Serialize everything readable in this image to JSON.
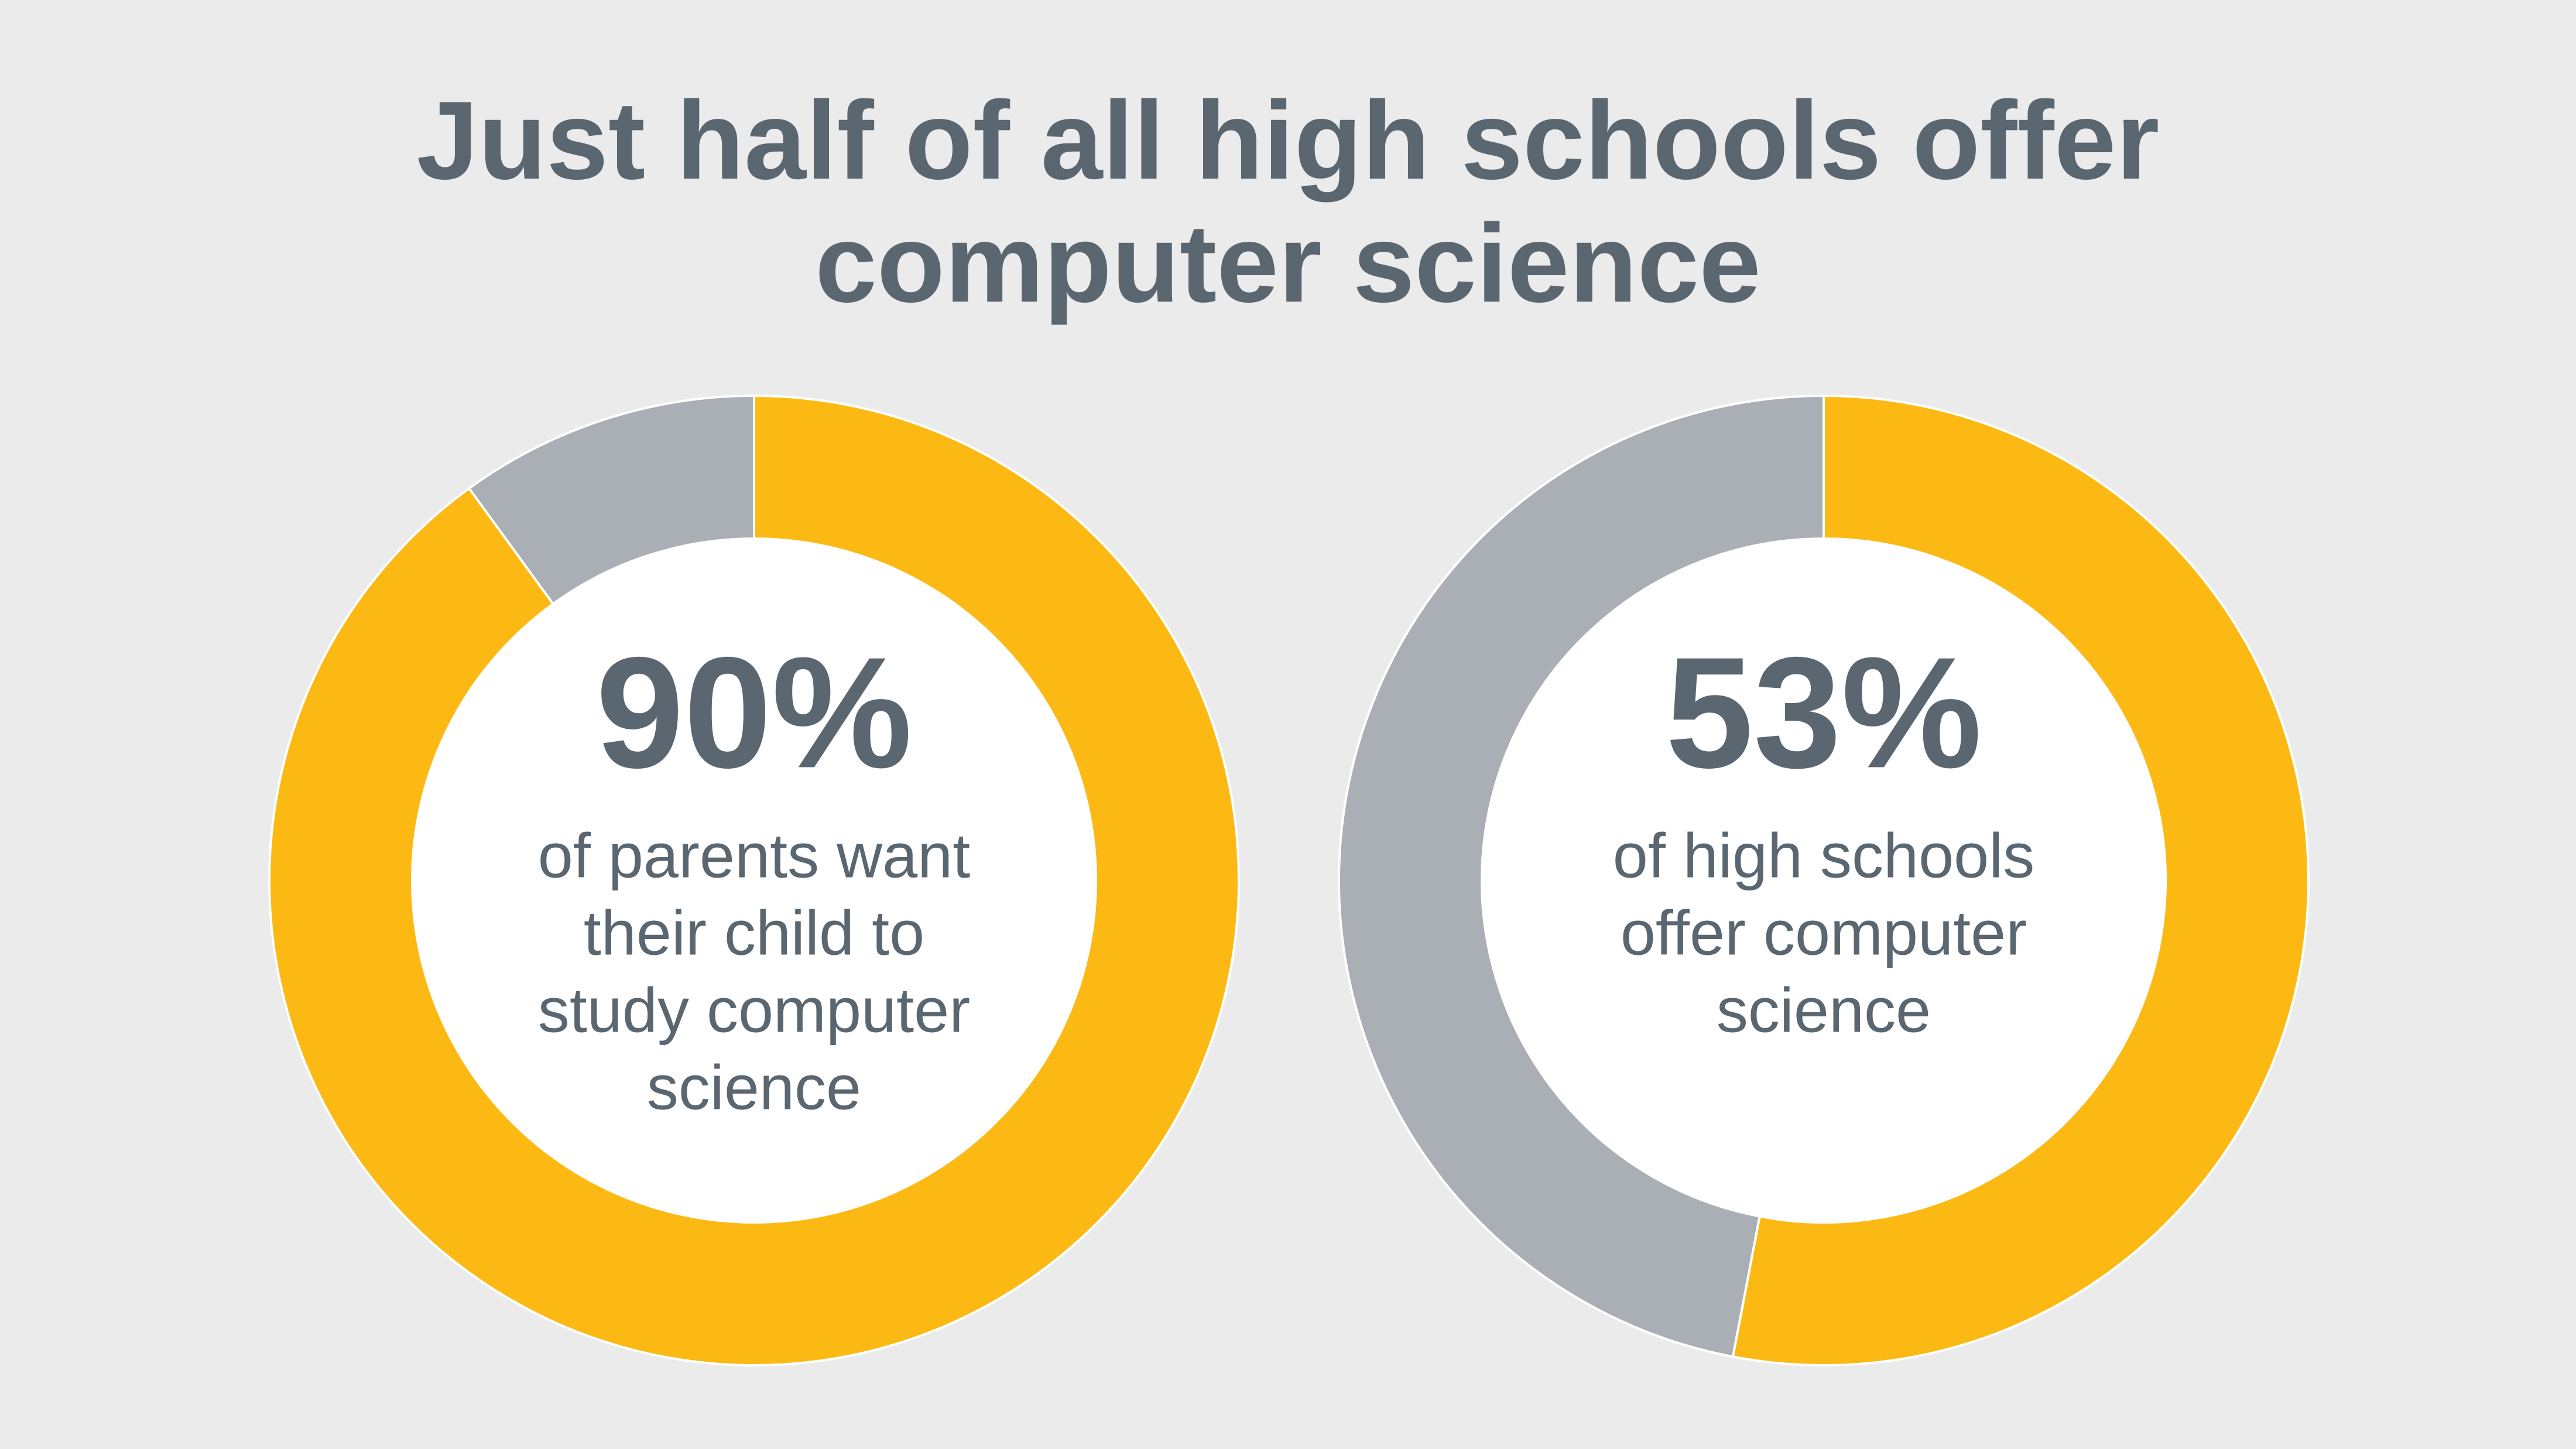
{
  "title": [
    "Just half of all high schools offer",
    "computer science"
  ],
  "chart_data": [
    {
      "type": "donut",
      "values": [
        90,
        10
      ],
      "value_labels": [
        "90%",
        null
      ],
      "colors": [
        "#fdb913",
        "#a9afb5"
      ],
      "caption": [
        "of parents want",
        "their child to",
        "study computer",
        "science"
      ]
    },
    {
      "type": "donut",
      "values": [
        53,
        47
      ],
      "value_labels": [
        "53%",
        null
      ],
      "colors": [
        "#fdb913",
        "#a9afb5"
      ],
      "caption": [
        "of high schools",
        "offer computer",
        "science"
      ]
    }
  ]
}
